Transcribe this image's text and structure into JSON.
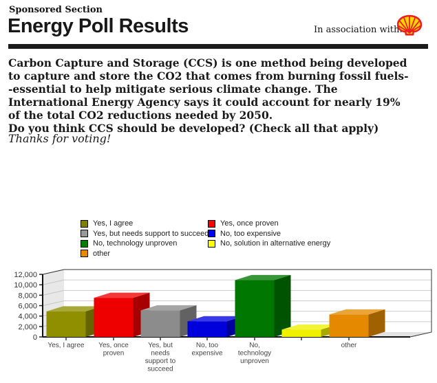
{
  "page": {
    "eyebrow": "Sponsored Section",
    "title": "Energy Poll Results",
    "association_label": "In association with:",
    "logo": "shell-pecten-logo",
    "rule_color": "#1b1b1b"
  },
  "intro": {
    "paragraph": "Carbon Capture and Storage (CCS) is one method being developed to capture and store the CO2 that comes from burning fossil fuels--essential to help mitigate serious climate change. The International Energy Agency says it could account for nearly 19% of the total CO2 reductions needed by 2050.",
    "question": "Do you think CCS should be developed? (Check all that apply)",
    "thanks": "Thanks for voting!"
  },
  "chart_data": {
    "type": "bar",
    "style": "3d",
    "title": "",
    "xlabel": "",
    "ylabel": "",
    "categories": [
      "Yes, I agree",
      "Yes, once proven",
      "Yes, but needs support to succeed",
      "No, too expensive",
      "No, technology unproven",
      "No, solution in alternative energy",
      "other"
    ],
    "values": [
      4900,
      7500,
      5100,
      3000,
      10900,
      1400,
      4300
    ],
    "colors": [
      "#8F8F00",
      "#EE0000",
      "#8C8C8C",
      "#0000DD",
      "#007700",
      "#F0F000",
      "#E58A00"
    ],
    "x_tick_labels": [
      "Yes, I agree",
      "Yes, once\nproven",
      "Yes, but\nneeds\nsupport to\nsucceed",
      "No, too\nexpensive",
      "No,\ntechnology\nunproven",
      "",
      "other"
    ],
    "y_ticks": [
      "0",
      "2,000",
      "4,000",
      "6,000",
      "8,000",
      "10,000",
      "12,000"
    ],
    "ylim": [
      0,
      12000
    ],
    "y_step": 2000,
    "grid": true,
    "wall_color": "#E8E8E8",
    "floor_color": "#E2E2E2",
    "grid_color": "#CCCCCC",
    "legend_position": "top",
    "legend": [
      {
        "label": "Yes, I agree",
        "color": "#808000"
      },
      {
        "label": "Yes, once proven",
        "color": "#FF0000"
      },
      {
        "label": "Yes, but needs support to succeed",
        "color": "#999999"
      },
      {
        "label": "No, too expensive",
        "color": "#0000FF"
      },
      {
        "label": "No, technology unproven",
        "color": "#008000"
      },
      {
        "label": "No, solution in alternative energy",
        "color": "#FFFF00"
      },
      {
        "label": "other",
        "color": "#E58A00"
      }
    ]
  }
}
